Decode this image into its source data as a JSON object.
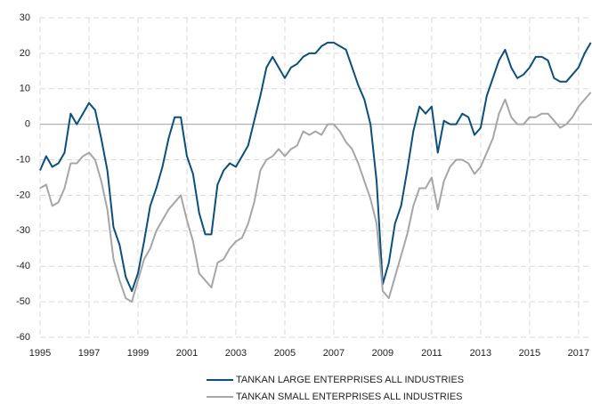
{
  "chart_data": {
    "type": "line",
    "x": [
      1995,
      1995.25,
      1995.5,
      1995.75,
      1996,
      1996.25,
      1996.5,
      1996.75,
      1997,
      1997.25,
      1997.5,
      1997.75,
      1998,
      1998.25,
      1998.5,
      1998.75,
      1999,
      1999.25,
      1999.5,
      1999.75,
      2000,
      2000.25,
      2000.5,
      2000.75,
      2001,
      2001.25,
      2001.5,
      2001.75,
      2002,
      2002.25,
      2002.5,
      2002.75,
      2003,
      2003.25,
      2003.5,
      2003.75,
      2004,
      2004.25,
      2004.5,
      2004.75,
      2005,
      2005.25,
      2005.5,
      2005.75,
      2006,
      2006.25,
      2006.5,
      2006.75,
      2007,
      2007.25,
      2007.5,
      2007.75,
      2008,
      2008.25,
      2008.5,
      2008.75,
      2009,
      2009.25,
      2009.5,
      2009.75,
      2010,
      2010.25,
      2010.5,
      2010.75,
      2011,
      2011.25,
      2011.5,
      2011.75,
      2012,
      2012.25,
      2012.5,
      2012.75,
      2013,
      2013.25,
      2013.5,
      2013.75,
      2014,
      2014.25,
      2014.5,
      2014.75,
      2015,
      2015.25,
      2015.5,
      2015.75,
      2016,
      2016.25,
      2016.5,
      2016.75,
      2017,
      2017.25,
      2017.5
    ],
    "series": [
      {
        "name": "TANKAN LARGE ENTERPRISES ALL INDUSTRIES",
        "color": "#0b4f7c",
        "values": [
          -13,
          -9,
          -12,
          -11,
          -8,
          3,
          0,
          3,
          6,
          4,
          -4,
          -13,
          -29,
          -34,
          -43,
          -47,
          -42,
          -33,
          -23,
          -18,
          -12,
          -4,
          2,
          2,
          -9,
          -14,
          -25,
          -31,
          -31,
          -17,
          -13,
          -11,
          -12,
          -9,
          -6,
          1,
          8,
          16,
          19,
          16,
          13,
          16,
          17,
          19,
          20,
          20,
          22,
          23,
          23,
          22,
          21,
          16,
          11,
          7,
          0,
          -16,
          -45,
          -39,
          -28,
          -23,
          -13,
          -2,
          5,
          3,
          5,
          -8,
          1,
          0,
          0,
          3,
          2,
          -3,
          -1,
          8,
          13,
          18,
          21,
          16,
          13,
          14,
          16,
          19,
          19,
          18,
          13,
          12,
          12,
          14,
          16,
          20,
          23
        ]
      },
      {
        "name": "TANKAN SMALL ENTERPRISES ALL INDUSTRIES",
        "color": "#a6a6a6",
        "values": [
          -18,
          -17,
          -23,
          -22,
          -18,
          -11,
          -11,
          -9,
          -8,
          -10,
          -16,
          -24,
          -38,
          -44,
          -49,
          -50,
          -44,
          -38,
          -35,
          -30,
          -27,
          -24,
          -22,
          -20,
          -27,
          -33,
          -42,
          -44,
          -46,
          -39,
          -38,
          -35,
          -33,
          -32,
          -28,
          -22,
          -13,
          -10,
          -9,
          -7,
          -9,
          -7,
          -6,
          -2,
          -3,
          -2,
          -3,
          0,
          0,
          -2,
          -5,
          -7,
          -11,
          -16,
          -21,
          -28,
          -47,
          -49,
          -43,
          -37,
          -31,
          -23,
          -18,
          -18,
          -15,
          -24,
          -16,
          -12,
          -10,
          -10,
          -11,
          -14,
          -12,
          -8,
          -4,
          3,
          7,
          2,
          0,
          0,
          2,
          2,
          3,
          3,
          1,
          -1,
          0,
          2,
          5,
          7,
          9
        ]
      }
    ],
    "xlim": [
      1995,
      2017.55
    ],
    "xticks": [
      1995,
      1997,
      1999,
      2001,
      2003,
      2005,
      2007,
      2009,
      2011,
      2013,
      2015,
      2017
    ],
    "ylim": [
      -60,
      30
    ],
    "yticks": [
      -60,
      -50,
      -40,
      -30,
      -20,
      -10,
      0,
      10,
      20,
      30
    ],
    "grid": true
  }
}
